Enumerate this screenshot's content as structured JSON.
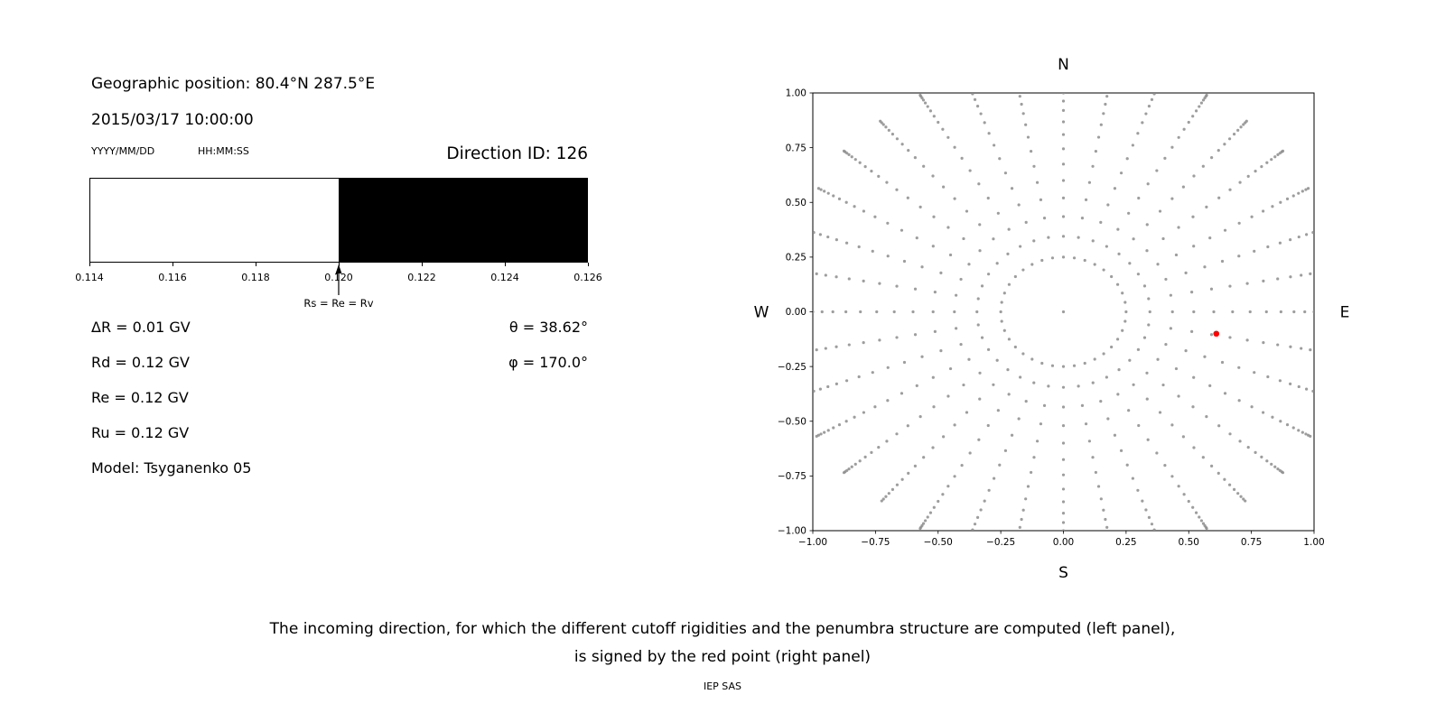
{
  "left_panel": {
    "geographic_position": "Geographic position: 80.4°N 287.5°E",
    "datetime": "2015/03/17 10:00:00",
    "date_format": "YYYY/MM/DD",
    "time_format": "HH:MM:SS",
    "direction_id": "Direction ID: 126",
    "params": [
      "ΔR = 0.01 GV",
      "Rd = 0.12 GV",
      "Re = 0.12 GV",
      "Ru = 0.12 GV",
      "Model: Tsyganenko 05"
    ],
    "theta": "θ = 38.62°",
    "phi": "φ = 170.0°"
  },
  "chart_data": [
    {
      "type": "bar",
      "xlim": [
        0.114,
        0.126
      ],
      "x_ticks": [
        0.114,
        0.116,
        0.118,
        0.12,
        0.122,
        0.124,
        0.126
      ],
      "segments": [
        {
          "from": 0.114,
          "to": 0.12,
          "color": "#ffffff"
        },
        {
          "from": 0.12,
          "to": 0.126,
          "color": "#000000"
        }
      ],
      "marker": {
        "value": 0.12,
        "label": "Rs = Re = Rv"
      }
    },
    {
      "type": "scatter",
      "xlim": [
        -1,
        1
      ],
      "ylim": [
        -1,
        1
      ],
      "x_ticks": [
        -1,
        -0.75,
        -0.5,
        -0.25,
        0,
        0.25,
        0.5,
        0.75,
        1
      ],
      "y_ticks": [
        -1,
        -0.75,
        -0.5,
        -0.25,
        0,
        0.25,
        0.5,
        0.75,
        1
      ],
      "compass": {
        "top": "N",
        "bottom": "S",
        "left": "W",
        "right": "E"
      },
      "dot_color": "#8c8c8c",
      "spokes": {
        "azimuth_start_deg": 0,
        "azimuth_step_deg": 10,
        "count": 36,
        "radii": [
          0.25,
          0.345,
          0.435,
          0.52,
          0.6,
          0.675,
          0.745,
          0.81,
          0.868,
          0.92,
          0.963,
          1.0,
          1.032,
          1.06,
          1.083,
          1.102,
          1.117,
          1.128,
          1.137,
          1.143
        ]
      },
      "center_point": [
        0,
        0
      ],
      "red_point": {
        "x": 0.61,
        "y": -0.1,
        "color": "#ff0000"
      }
    }
  ],
  "caption": {
    "line1": "The incoming direction, for which the different cutoff rigidities and the penumbra structure are computed (left panel),",
    "line2": "is signed by the red point (right panel)",
    "credit": "IEP SAS"
  }
}
